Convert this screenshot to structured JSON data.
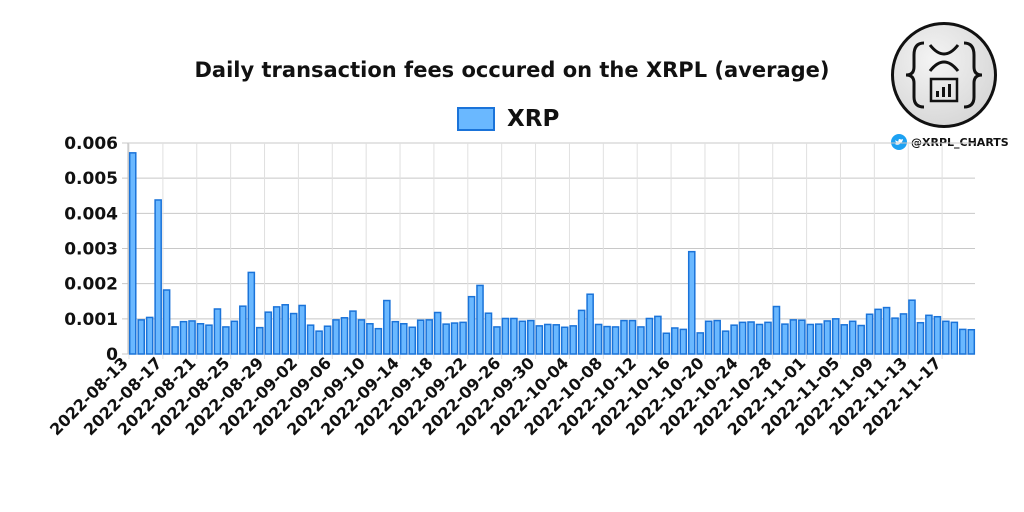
{
  "header": {
    "title": "Daily transaction fees occured on the XRPL (average)",
    "legend_label": "XRP",
    "handle": "@XRPL_CHARTS"
  },
  "colors": {
    "bar_fill": "#6ab8ff",
    "bar_stroke": "#1a73d9",
    "grid": "#d0d0d0",
    "twitter": "#1da1f2"
  },
  "chart_data": {
    "type": "bar",
    "title": "Daily transaction fees occured on the XRPL (average)",
    "xlabel": "",
    "ylabel": "",
    "ylim": [
      0,
      0.006
    ],
    "yticks": [
      "0",
      "0.001",
      "0.002",
      "0.003",
      "0.004",
      "0.005",
      "0.006"
    ],
    "xticks": [
      "2022-08-13",
      "2022-08-17",
      "2022-08-21",
      "2022-08-25",
      "2022-08-29",
      "2022-09-02",
      "2022-09-06",
      "2022-09-10",
      "2022-09-14",
      "2022-09-18",
      "2022-09-22",
      "2022-09-26",
      "2022-09-30",
      "2022-10-04",
      "2022-10-08",
      "2022-10-12",
      "2022-10-16",
      "2022-10-20",
      "2022-10-24",
      "2022-10-28",
      "2022-11-01",
      "2022-11-05",
      "2022-11-09",
      "2022-11-13",
      "2022-11-17"
    ],
    "legend": [
      "XRP"
    ],
    "legend_position": "top",
    "grid": true,
    "start_date": "2022-08-13",
    "series": [
      {
        "name": "XRP",
        "values": [
          0.00572,
          0.00097,
          0.00104,
          0.00438,
          0.00182,
          0.00077,
          0.00092,
          0.00094,
          0.00086,
          0.00082,
          0.00128,
          0.00077,
          0.00093,
          0.00136,
          0.00232,
          0.00075,
          0.00119,
          0.00134,
          0.0014,
          0.00115,
          0.00138,
          0.00082,
          0.00065,
          0.00079,
          0.00097,
          0.00103,
          0.00122,
          0.00097,
          0.00086,
          0.00072,
          0.00152,
          0.00092,
          0.00086,
          0.00076,
          0.00096,
          0.00097,
          0.00118,
          0.00085,
          0.00088,
          0.0009,
          0.00163,
          0.00195,
          0.00116,
          0.00077,
          0.00101,
          0.00101,
          0.00093,
          0.00095,
          0.0008,
          0.00084,
          0.00083,
          0.00076,
          0.0008,
          0.00124,
          0.0017,
          0.00084,
          0.00078,
          0.00077,
          0.00095,
          0.00095,
          0.00077,
          0.00101,
          0.00107,
          0.00059,
          0.00074,
          0.0007,
          0.00291,
          0.0006,
          0.00093,
          0.00095,
          0.00065,
          0.00082,
          0.0009,
          0.00091,
          0.00084,
          0.0009,
          0.00135,
          0.00085,
          0.00097,
          0.00096,
          0.00084,
          0.00085,
          0.00094,
          0.001,
          0.00083,
          0.00093,
          0.00081,
          0.00113,
          0.00127,
          0.00132,
          0.00102,
          0.00114,
          0.00153,
          0.00089,
          0.0011,
          0.00106,
          0.00093,
          0.0009,
          0.0007,
          0.00069
        ]
      }
    ]
  }
}
